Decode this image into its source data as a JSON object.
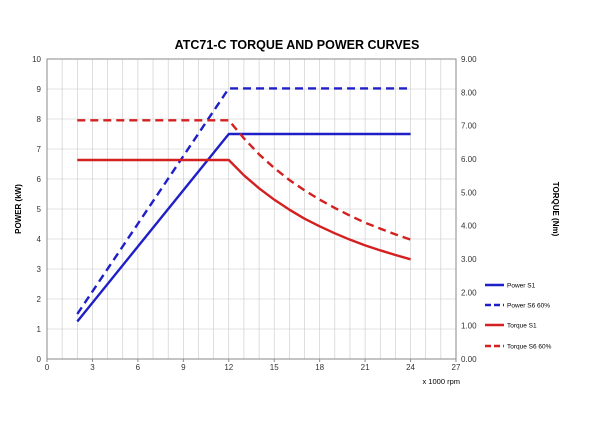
{
  "chart_data": {
    "type": "line",
    "title": "ATC71-C TORQUE AND POWER CURVES",
    "xlabel": "x 1000 rpm",
    "ylabel": "POWER (kW)",
    "y2label": "TORQUE (Nm)",
    "xlim": [
      0,
      27
    ],
    "ylim": [
      0,
      10
    ],
    "y2lim": [
      0,
      9
    ],
    "x_ticks": [
      0,
      3,
      6,
      9,
      12,
      15,
      18,
      21,
      24,
      27
    ],
    "y_ticks": [
      0,
      1,
      2,
      3,
      4,
      5,
      6,
      7,
      8,
      9,
      10
    ],
    "y2_ticks": [
      "0.00",
      "1.00",
      "2.00",
      "3.00",
      "4.00",
      "5.00",
      "6.00",
      "7.00",
      "8.00",
      "9.00"
    ],
    "grid": true,
    "legend_position": "right",
    "series": [
      {
        "name": "Power S1",
        "axis": "left",
        "color": "#1f1fc8",
        "dash": "solid",
        "points": [
          [
            2,
            1.25
          ],
          [
            12,
            7.5
          ],
          [
            24,
            7.5
          ]
        ]
      },
      {
        "name": "Power S6 60%",
        "axis": "left",
        "color": "#1f1fc8",
        "dash": "dashed",
        "points": [
          [
            2,
            1.5
          ],
          [
            12,
            9.02
          ],
          [
            24,
            9.02
          ]
        ]
      },
      {
        "name": "Torque S1",
        "axis": "right",
        "color": "#d42020",
        "dash": "solid",
        "points": [
          [
            2,
            5.97
          ],
          [
            12,
            5.97
          ],
          [
            13,
            5.51
          ],
          [
            14,
            5.12
          ],
          [
            15,
            4.78
          ],
          [
            16,
            4.48
          ],
          [
            17,
            4.21
          ],
          [
            18,
            3.98
          ],
          [
            19,
            3.77
          ],
          [
            20,
            3.58
          ],
          [
            21,
            3.41
          ],
          [
            22,
            3.26
          ],
          [
            23,
            3.12
          ],
          [
            24,
            2.99
          ]
        ]
      },
      {
        "name": "Torque S6 60%",
        "axis": "right",
        "color": "#d42020",
        "dash": "dashed",
        "points": [
          [
            2,
            7.16
          ],
          [
            12,
            7.16
          ],
          [
            13,
            6.62
          ],
          [
            14,
            6.14
          ],
          [
            15,
            5.73
          ],
          [
            16,
            5.37
          ],
          [
            17,
            5.06
          ],
          [
            18,
            4.78
          ],
          [
            19,
            4.53
          ],
          [
            20,
            4.3
          ],
          [
            21,
            4.09
          ],
          [
            22,
            3.91
          ],
          [
            23,
            3.74
          ],
          [
            24,
            3.58
          ]
        ]
      }
    ]
  }
}
